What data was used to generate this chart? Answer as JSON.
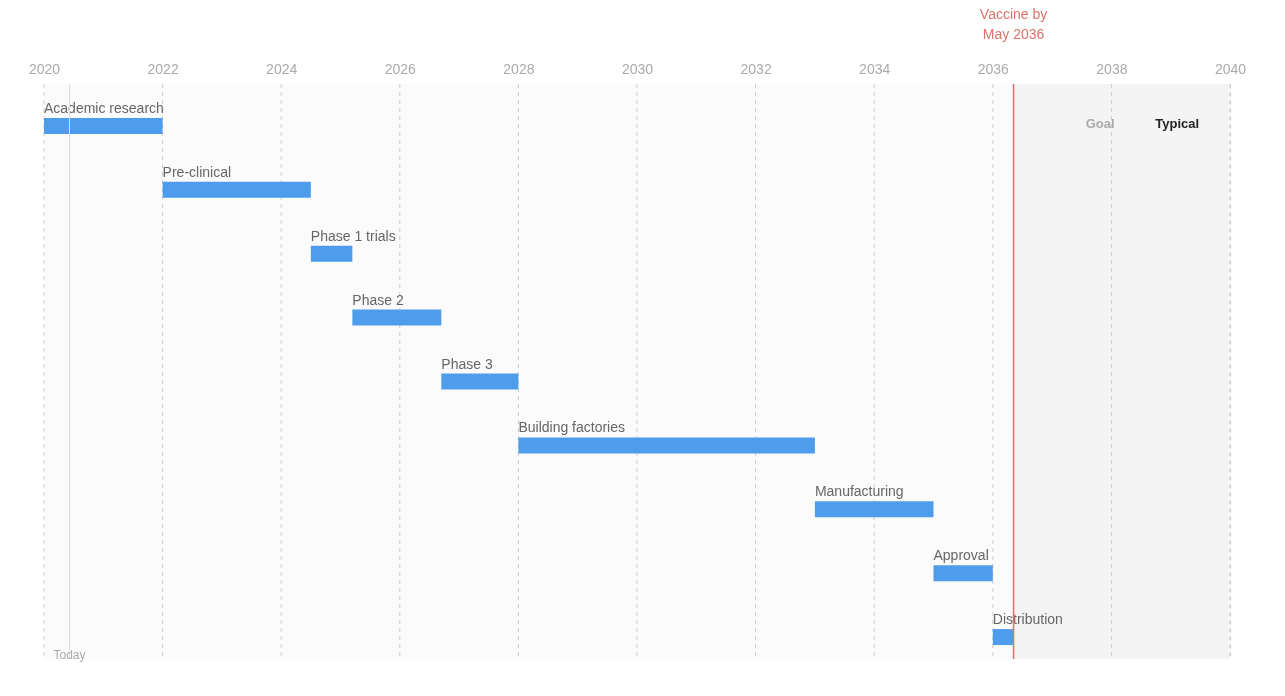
{
  "chart_data": {
    "type": "bar",
    "orientation": "horizontal",
    "categories": [
      "Academic research",
      "Pre-clinical",
      "Phase 1 trials",
      "Phase 2",
      "Phase 3",
      "Building factories",
      "Manufacturing",
      "Approval",
      "Distribution"
    ],
    "base": [
      2020,
      2022,
      2024.5,
      2025.2,
      2026.7,
      2028,
      2033,
      2035,
      2036
    ],
    "values": [
      2,
      2.5,
      0.7,
      1.5,
      1.3,
      5,
      2,
      1,
      0.35
    ],
    "color": "#4e9ded",
    "xlim": [
      2020,
      2040
    ],
    "xticks": [
      2020,
      2022,
      2024,
      2026,
      2028,
      2030,
      2032,
      2034,
      2036,
      2038,
      2040
    ],
    "grid": "x",
    "ref_lines": [
      {
        "axis": "x",
        "value": 2036.35,
        "label": "Vaccine by May 2036",
        "color": "#d9736b"
      },
      {
        "axis": "x",
        "value": 2020.43,
        "label": "Today",
        "color": "#dddddd"
      }
    ],
    "bands": [
      {
        "axis": "x",
        "from": 2036.35,
        "to": 2040,
        "color": "#f4f4f4"
      }
    ],
    "annotations": [
      "Goal",
      "Typical"
    ]
  }
}
